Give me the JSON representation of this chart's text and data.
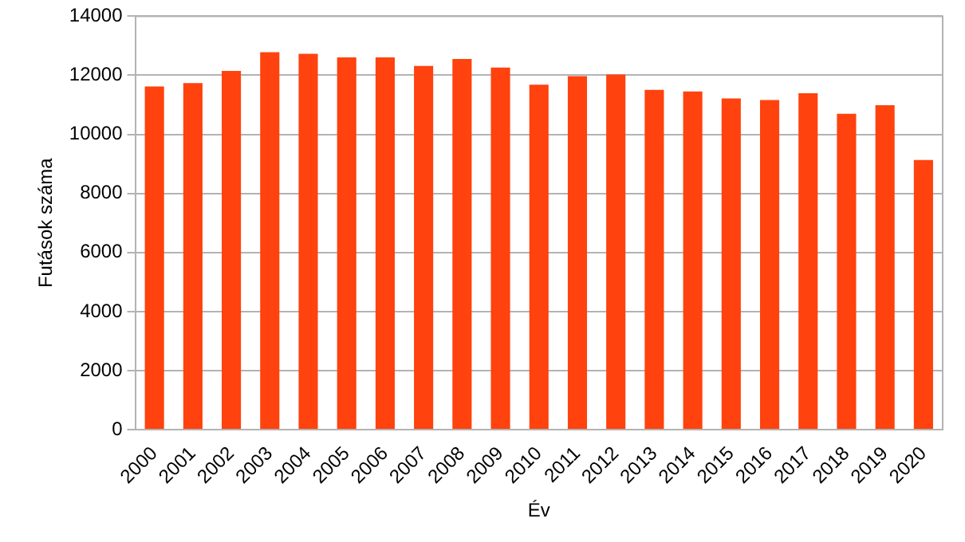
{
  "chart_data": {
    "type": "bar",
    "xlabel": "Év",
    "ylabel": "Futások száma",
    "categories": [
      "2000",
      "2001",
      "2002",
      "2003",
      "2004",
      "2005",
      "2006",
      "2007",
      "2008",
      "2009",
      "2010",
      "2011",
      "2012",
      "2013",
      "2014",
      "2015",
      "2016",
      "2017",
      "2018",
      "2019",
      "2020"
    ],
    "values": [
      11620,
      11740,
      12150,
      12780,
      12730,
      12610,
      12610,
      12320,
      12550,
      12260,
      11680,
      11970,
      12030,
      11510,
      11450,
      11220,
      11160,
      11390,
      10700,
      10990,
      9130
    ],
    "color": "#ff420e",
    "ylim": [
      0,
      14000
    ],
    "yticks": [
      0,
      2000,
      4000,
      6000,
      8000,
      10000,
      12000,
      14000
    ],
    "grid": "y",
    "legend": false
  }
}
